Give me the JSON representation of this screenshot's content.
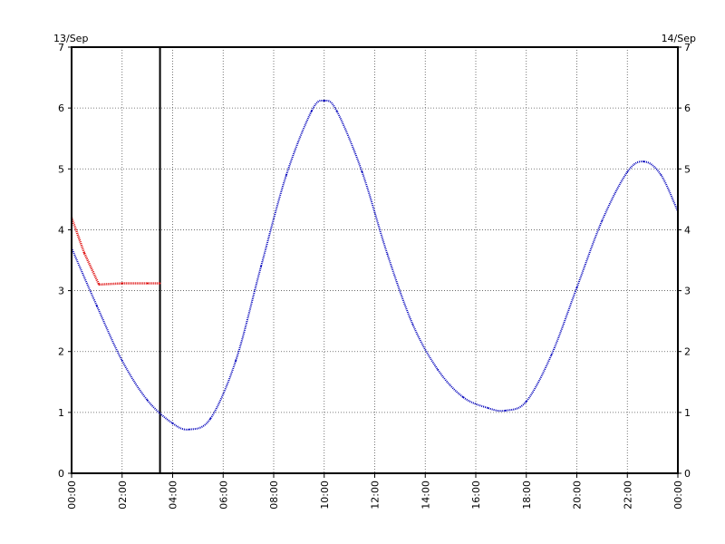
{
  "chart_data": {
    "type": "line",
    "title": "",
    "xlabel": "",
    "ylabel": "",
    "start_date_label": "13/Sep",
    "end_date_label": "14/Sep",
    "xlim": [
      "13/Sep 00:00",
      "14/Sep 00:00"
    ],
    "ylim": [
      0,
      7
    ],
    "y_ticks": [
      "0",
      "1",
      "2",
      "3",
      "4",
      "5",
      "6",
      "7"
    ],
    "x_tick_labels": [
      "00:00",
      "02:00",
      "04:00",
      "06:00",
      "08:00",
      "10:00",
      "12:00",
      "14:00",
      "16:00",
      "18:00",
      "20:00",
      "22:00",
      "00:00"
    ],
    "grid": true,
    "legend": "none",
    "current_time_marker": "13/Sep 03:30",
    "series": [
      {
        "color": "#0000bb",
        "style": "dotted",
        "x": [
          "13/Sep 00:00",
          "13/Sep 01:00",
          "13/Sep 02:00",
          "13/Sep 03:00",
          "13/Sep 04:00",
          "13/Sep 04:40",
          "13/Sep 05:30",
          "13/Sep 06:30",
          "13/Sep 07:30",
          "13/Sep 08:30",
          "13/Sep 09:30",
          "13/Sep 10:00",
          "13/Sep 10:30",
          "13/Sep 11:30",
          "13/Sep 12:30",
          "13/Sep 13:30",
          "13/Sep 14:30",
          "13/Sep 15:30",
          "13/Sep 16:30",
          "13/Sep 17:10",
          "13/Sep 18:00",
          "13/Sep 19:00",
          "13/Sep 20:00",
          "13/Sep 21:00",
          "13/Sep 22:00",
          "13/Sep 22:40",
          "13/Sep 23:20",
          "14/Sep 00:00"
        ],
        "values": [
          3.7,
          2.75,
          1.85,
          1.2,
          0.82,
          0.72,
          0.9,
          1.85,
          3.4,
          4.9,
          5.95,
          6.12,
          5.95,
          4.95,
          3.6,
          2.45,
          1.7,
          1.25,
          1.07,
          1.03,
          1.18,
          1.95,
          3.05,
          4.15,
          4.95,
          5.12,
          4.9,
          4.3
        ]
      },
      {
        "color": "#dd0000",
        "style": "dotted",
        "x": [
          "13/Sep 00:00",
          "13/Sep 00:30",
          "13/Sep 01:05",
          "13/Sep 02:00",
          "13/Sep 03:00",
          "13/Sep 03:30"
        ],
        "values": [
          4.2,
          3.62,
          3.1,
          3.12,
          3.12,
          3.12
        ]
      }
    ]
  }
}
